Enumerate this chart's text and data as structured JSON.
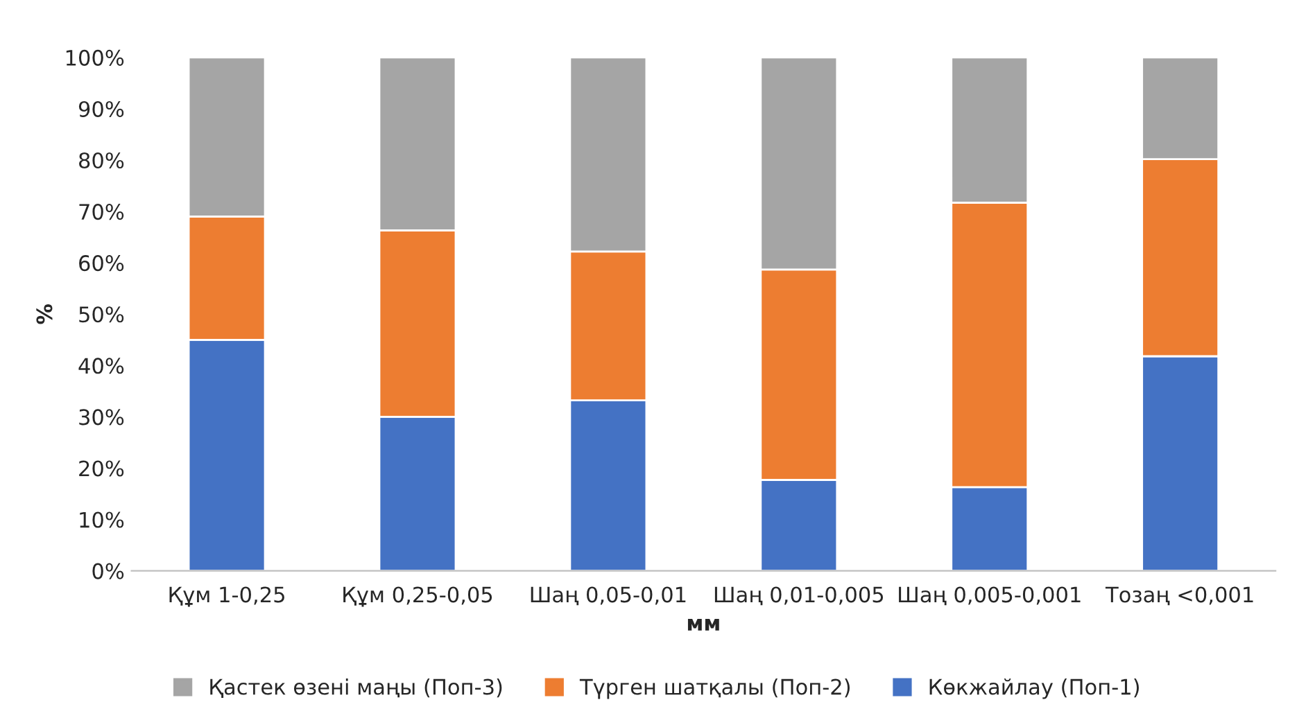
{
  "chart_data": {
    "type": "bar",
    "stacked": true,
    "xlabel": "мм",
    "ylabel": "%",
    "categories": [
      "Құм 1-0,25",
      "Құм 0,25-0,05",
      "Шаң 0,05-0,01",
      "Шаң 0,01-0,005",
      "Шаң 0,005-0,001",
      "Тозаң <0,001"
    ],
    "series": [
      {
        "name": "Көкжайлау (Поп-1)",
        "color": "#4472c4",
        "values": [
          45,
          30,
          33.2,
          17.7,
          16.3,
          41.8
        ]
      },
      {
        "name": "Түрген шатқалы (Поп-2)",
        "color": "#ed7d31",
        "values": [
          24,
          36.3,
          29,
          41,
          55.4,
          38.4
        ]
      },
      {
        "name": "Қастек өзені маңы (Поп-3)",
        "color": "#a5a5a5",
        "values": [
          31,
          33.7,
          37.8,
          41.3,
          28.3,
          19.8
        ]
      }
    ],
    "ylim": [
      0,
      100
    ],
    "yticks": [
      {
        "value": 0,
        "label": "0%"
      },
      {
        "value": 10,
        "label": "10%"
      },
      {
        "value": 20,
        "label": "20%"
      },
      {
        "value": 30,
        "label": "30%"
      },
      {
        "value": 40,
        "label": "40%"
      },
      {
        "value": 50,
        "label": "50%"
      },
      {
        "value": 60,
        "label": "60%"
      },
      {
        "value": 70,
        "label": "70%"
      },
      {
        "value": 80,
        "label": "80%"
      },
      {
        "value": 90,
        "label": "90%"
      },
      {
        "value": 100,
        "label": "100%"
      }
    ],
    "grid": false,
    "legend": "bottom"
  }
}
